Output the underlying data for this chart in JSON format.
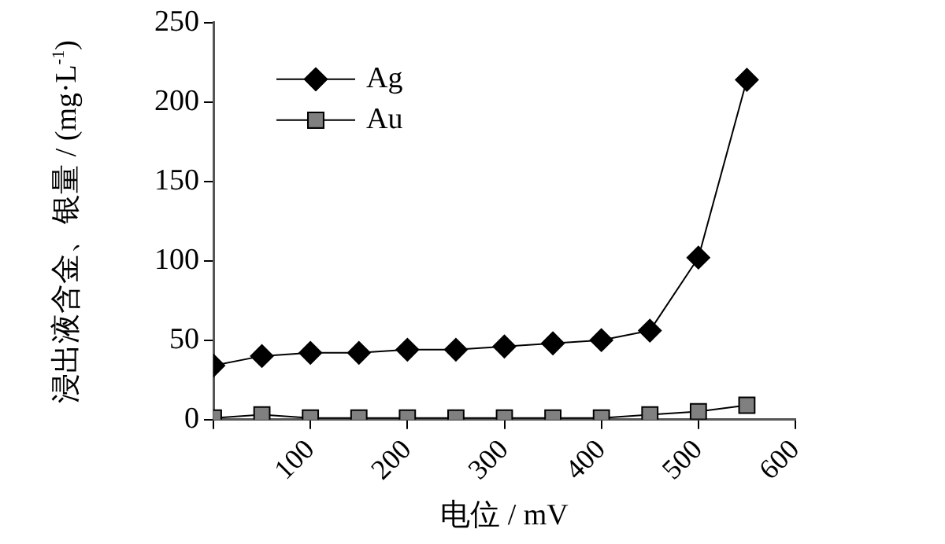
{
  "chart_data": {
    "type": "line",
    "xlabel": "电位 / mV",
    "ylabel": "浸出液含金、银量 / (mg·L$^{-1}$)",
    "x": [
      0,
      50,
      100,
      150,
      200,
      250,
      300,
      350,
      400,
      450,
      500,
      550
    ],
    "series": [
      {
        "name": "Ag",
        "color": "#000000",
        "marker": "diamond",
        "values": [
          34,
          40,
          42,
          42,
          44,
          44,
          46,
          48,
          50,
          56,
          102,
          214
        ]
      },
      {
        "name": "Au",
        "color": "#808080",
        "marker": "square",
        "values": [
          1,
          3,
          1,
          1,
          1,
          1,
          1,
          1,
          1,
          3,
          5,
          9
        ]
      }
    ],
    "xlim": [
      0,
      600
    ],
    "xticks": [
      {
        "value": 0,
        "label": null
      },
      100,
      200,
      300,
      400,
      500,
      600
    ],
    "ylim": [
      0,
      250
    ],
    "yticks": [
      0,
      50,
      100,
      150,
      200,
      250
    ],
    "grid": false,
    "legend": "top left",
    "line_style": "solid"
  }
}
